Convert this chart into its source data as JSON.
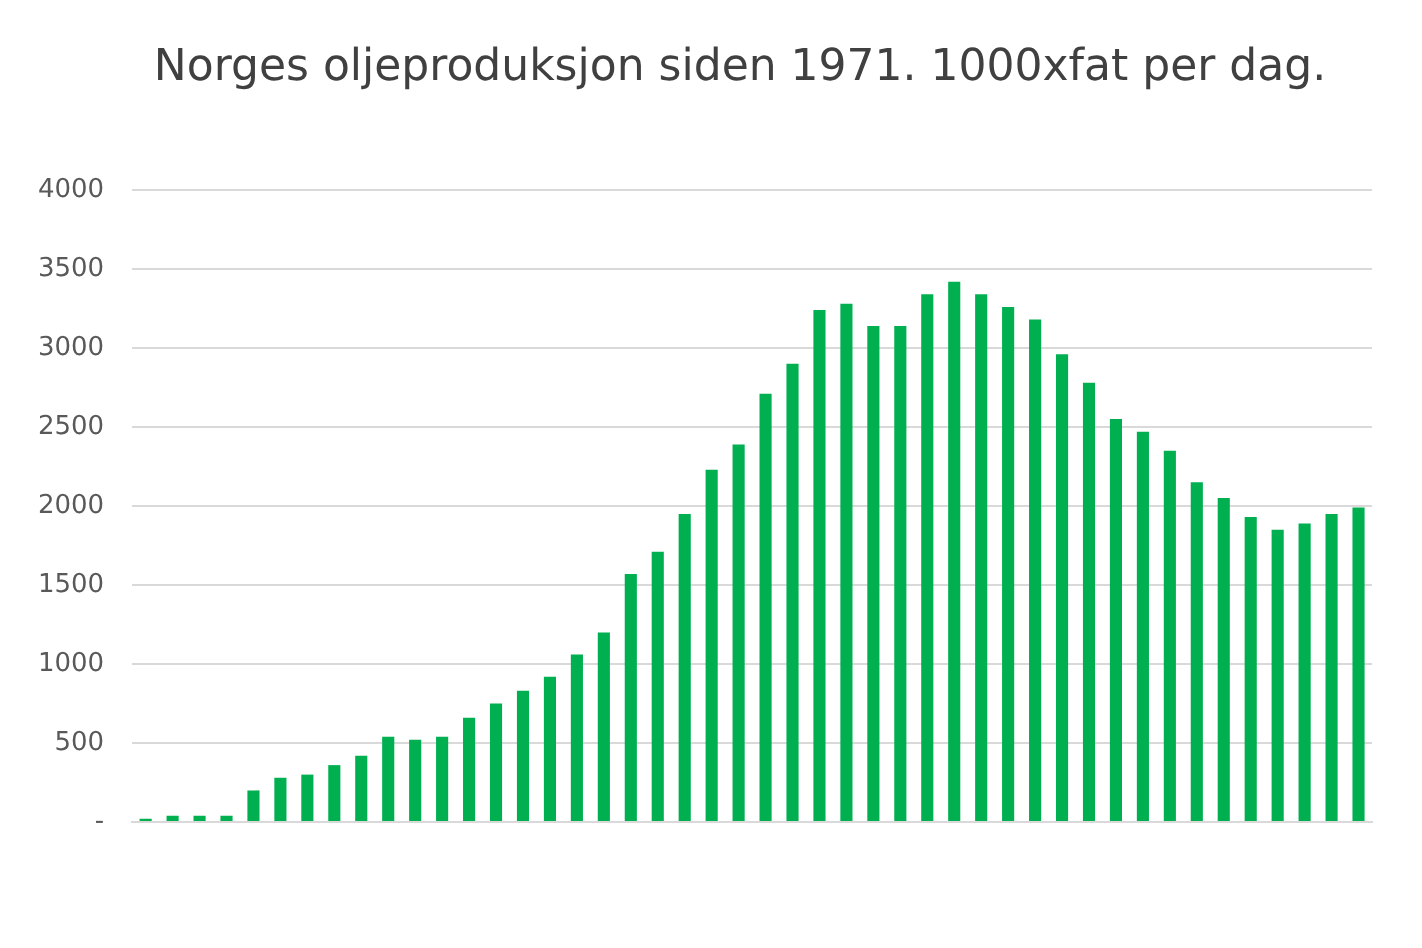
{
  "chart_data": {
    "type": "bar",
    "title": "Norges oljeproduksjon siden 1971. 1000xfat per dag.",
    "categories": [
      null,
      null,
      null,
      null,
      null,
      null,
      null,
      null,
      null,
      null,
      null,
      null,
      null,
      null,
      null,
      null,
      null,
      null,
      null,
      null,
      null,
      null,
      null,
      null,
      null,
      null,
      null,
      null,
      null,
      null,
      null,
      null,
      null,
      null,
      null,
      null,
      null,
      null,
      null,
      null,
      null,
      null,
      null,
      null,
      null,
      null
    ],
    "values": [
      20,
      40,
      40,
      40,
      200,
      280,
      300,
      360,
      420,
      540,
      520,
      540,
      660,
      750,
      830,
      920,
      1060,
      1200,
      1570,
      1710,
      1950,
      2230,
      2390,
      2710,
      2900,
      3240,
      3280,
      3140,
      3140,
      3340,
      3420,
      3340,
      3260,
      3180,
      2960,
      2780,
      2550,
      2470,
      2350,
      2150,
      2050,
      1930,
      1850,
      1890,
      1950,
      1990
    ],
    "color": "#00b050",
    "ylim": [
      0,
      4000
    ],
    "yticks": [
      {
        "value": 0,
        "label": "-"
      },
      500,
      1000,
      1500,
      2000,
      2500,
      3000,
      3500,
      4000
    ],
    "grid": "y"
  }
}
